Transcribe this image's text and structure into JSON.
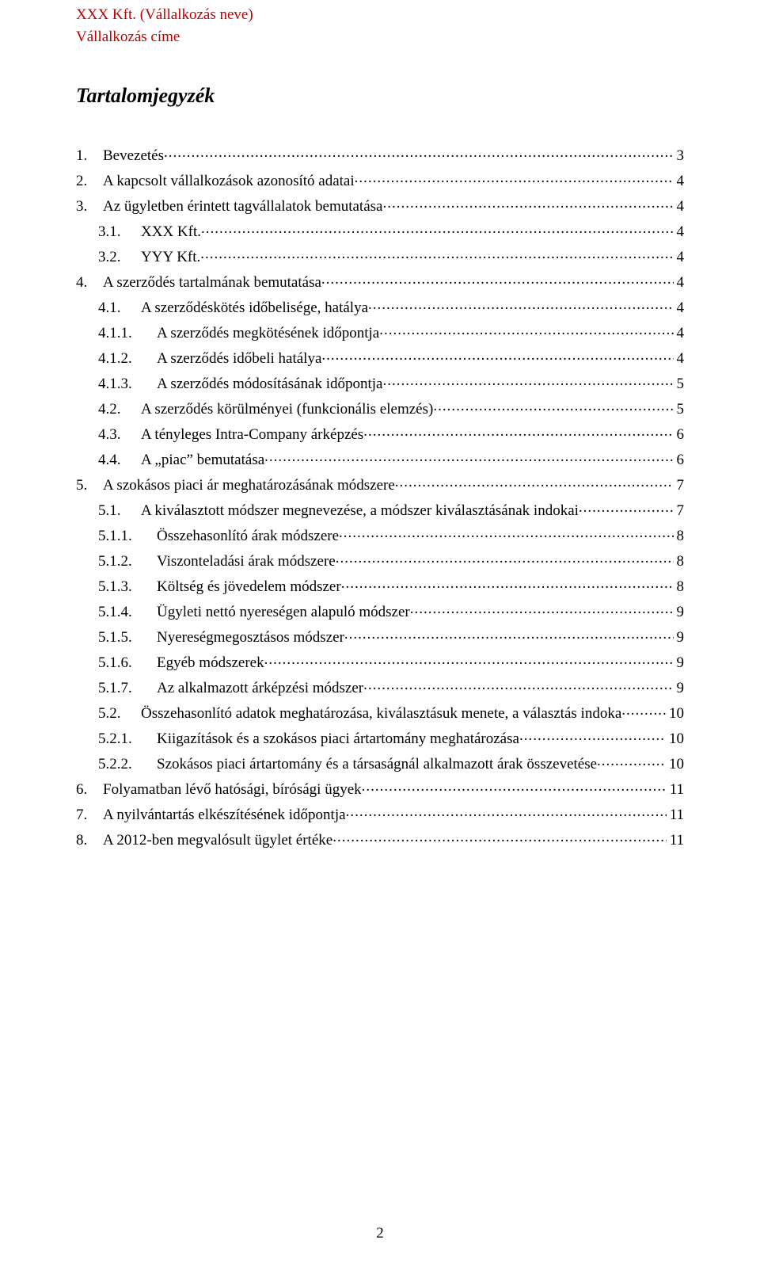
{
  "header": {
    "line1": "XXX Kft. (Vállalkozás neve)",
    "line2": "Vállalkozás címe"
  },
  "title": "Tartalomjegyzék",
  "page_number": "2",
  "toc": [
    {
      "indent": 0,
      "num": "1.",
      "label": "Bevezetés",
      "page": "3"
    },
    {
      "indent": 0,
      "num": "2.",
      "label": "A kapcsolt vállalkozások azonosító adatai",
      "page": "4"
    },
    {
      "indent": 0,
      "num": "3.",
      "label": "Az ügyletben érintett tagvállalatok bemutatása",
      "page": "4"
    },
    {
      "indent": 1,
      "num": "3.1.",
      "label": "XXX Kft.",
      "page": "4"
    },
    {
      "indent": 1,
      "num": "3.2.",
      "label": "YYY Kft.",
      "page": "4"
    },
    {
      "indent": 0,
      "num": "4.",
      "label": "A szerződés tartalmának bemutatása",
      "page": "4"
    },
    {
      "indent": 1,
      "num": "4.1.",
      "label": "A szerződéskötés időbelisége, hatálya",
      "page": "4"
    },
    {
      "indent": 2,
      "num": "4.1.1.",
      "label": "A szerződés megkötésének időpontja",
      "page": "4"
    },
    {
      "indent": 2,
      "num": "4.1.2.",
      "label": "A szerződés időbeli hatálya",
      "page": "4"
    },
    {
      "indent": 2,
      "num": "4.1.3.",
      "label": "A szerződés módosításának időpontja",
      "page": "5"
    },
    {
      "indent": 1,
      "num": "4.2.",
      "label": "A szerződés körülményei (funkcionális elemzés)",
      "page": "5"
    },
    {
      "indent": 1,
      "num": "4.3.",
      "label": "A tényleges Intra-Company árképzés",
      "page": "6"
    },
    {
      "indent": 1,
      "num": "4.4.",
      "label": "A „piac” bemutatása",
      "page": "6"
    },
    {
      "indent": 0,
      "num": "5.",
      "label": "A szokásos piaci ár meghatározásának módszere",
      "page": "7"
    },
    {
      "indent": 1,
      "num": "5.1.",
      "label": "A kiválasztott módszer megnevezése, a módszer kiválasztásának indokai",
      "page": "7"
    },
    {
      "indent": 2,
      "num": "5.1.1.",
      "label": "Összehasonlító árak módszere",
      "page": "8"
    },
    {
      "indent": 2,
      "num": "5.1.2.",
      "label": "Viszonteladási árak módszere",
      "page": "8"
    },
    {
      "indent": 2,
      "num": "5.1.3.",
      "label": "Költség és jövedelem módszer",
      "page": "8"
    },
    {
      "indent": 2,
      "num": "5.1.4.",
      "label": "Ügyleti nettó nyereségen alapuló módszer",
      "page": "9"
    },
    {
      "indent": 2,
      "num": "5.1.5.",
      "label": "Nyereségmegosztásos módszer",
      "page": "9"
    },
    {
      "indent": 2,
      "num": "5.1.6.",
      "label": "Egyéb módszerek",
      "page": "9"
    },
    {
      "indent": 2,
      "num": "5.1.7.",
      "label": "Az alkalmazott árképzési módszer",
      "page": "9"
    },
    {
      "indent": 1,
      "num": "5.2.",
      "label": "Összehasonlító adatok meghatározása, kiválasztásuk menete, a választás  indoka",
      "page": "10"
    },
    {
      "indent": 2,
      "num": "5.2.1.",
      "label": "Kiigazítások és a szokásos piaci ártartomány meghatározása",
      "page": "10"
    },
    {
      "indent": 2,
      "num": "5.2.2.",
      "label": "Szokásos piaci ártartomány és a társaságnál alkalmazott árak összevetése",
      "page": "10"
    },
    {
      "indent": 0,
      "num": "6.",
      "label": "Folyamatban lévő hatósági, bírósági ügyek",
      "page": "11"
    },
    {
      "indent": 0,
      "num": "7.",
      "label": "A nyilvántartás elkészítésének időpontja",
      "page": "11"
    },
    {
      "indent": 0,
      "num": "8.",
      "label": "A 2012-ben megvalósult ügylet értéke",
      "page": "11"
    }
  ]
}
